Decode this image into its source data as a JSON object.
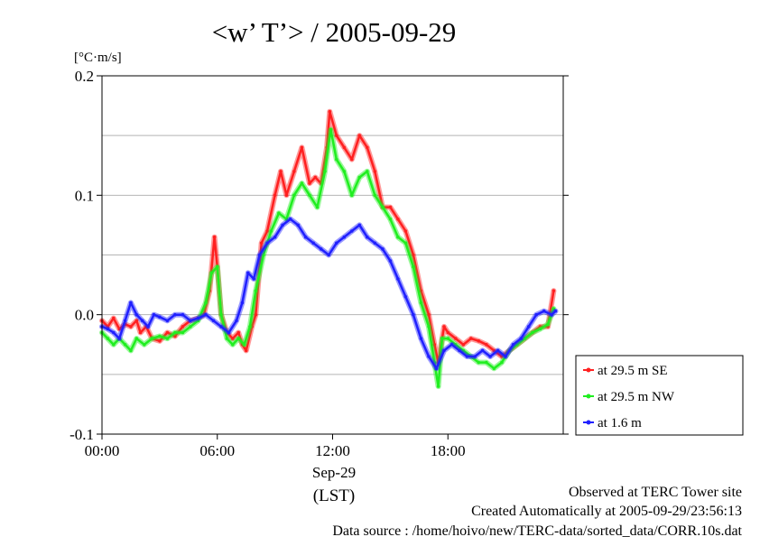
{
  "title": "<w’ T’> / 2005-09-29",
  "chart_data": {
    "type": "line",
    "title": "<w’ T’> / 2005-09-29",
    "ylabel": "[°C·m/s]",
    "xlabel": "(LST)",
    "date_label": "Sep-29",
    "x_unit": "hour of day (LST)",
    "xlim": [
      0,
      24
    ],
    "ylim": [
      -0.1,
      0.2
    ],
    "x_ticks": [
      0,
      6,
      12,
      18
    ],
    "x_tick_labels": [
      "00:00",
      "06:00",
      "12:00",
      "18:00"
    ],
    "y_ticks": [
      -0.1,
      0.0,
      0.1,
      0.2
    ],
    "y_tick_labels": [
      "-0.1",
      "0.0",
      "0.1",
      "0.2"
    ],
    "grid_y": [
      -0.05,
      0.0,
      0.05,
      0.1,
      0.15
    ],
    "grid": true,
    "legend_position": "right-bottom",
    "series": [
      {
        "name": "at 29.5 m SE",
        "color": "#ff2020",
        "points": [
          [
            0,
            -0.005
          ],
          [
            0.3,
            -0.01
          ],
          [
            0.6,
            -0.003
          ],
          [
            0.9,
            -0.012
          ],
          [
            1.2,
            -0.008
          ],
          [
            1.5,
            -0.01
          ],
          [
            1.8,
            -0.005
          ],
          [
            2.0,
            -0.015
          ],
          [
            2.3,
            -0.01
          ],
          [
            2.6,
            -0.02
          ],
          [
            3.0,
            -0.022
          ],
          [
            3.4,
            -0.015
          ],
          [
            3.8,
            -0.018
          ],
          [
            4.2,
            -0.01
          ],
          [
            4.6,
            -0.005
          ],
          [
            5.0,
            -0.003
          ],
          [
            5.3,
            0.0
          ],
          [
            5.6,
            0.02
          ],
          [
            5.85,
            0.065
          ],
          [
            6.0,
            0.04
          ],
          [
            6.2,
            0.0
          ],
          [
            6.5,
            -0.015
          ],
          [
            6.8,
            -0.02
          ],
          [
            7.1,
            -0.015
          ],
          [
            7.3,
            -0.025
          ],
          [
            7.5,
            -0.03
          ],
          [
            7.8,
            -0.01
          ],
          [
            8.0,
            0.0
          ],
          [
            8.3,
            0.06
          ],
          [
            8.6,
            0.07
          ],
          [
            9.0,
            0.1
          ],
          [
            9.3,
            0.12
          ],
          [
            9.6,
            0.1
          ],
          [
            10.0,
            0.12
          ],
          [
            10.4,
            0.14
          ],
          [
            10.8,
            0.11
          ],
          [
            11.1,
            0.115
          ],
          [
            11.4,
            0.11
          ],
          [
            11.7,
            0.14
          ],
          [
            11.85,
            0.17
          ],
          [
            12.2,
            0.15
          ],
          [
            12.6,
            0.14
          ],
          [
            13.0,
            0.13
          ],
          [
            13.4,
            0.15
          ],
          [
            13.8,
            0.14
          ],
          [
            14.2,
            0.12
          ],
          [
            14.6,
            0.09
          ],
          [
            15.0,
            0.09
          ],
          [
            15.4,
            0.08
          ],
          [
            15.8,
            0.07
          ],
          [
            16.2,
            0.05
          ],
          [
            16.6,
            0.02
          ],
          [
            17.0,
            0.0
          ],
          [
            17.3,
            -0.025
          ],
          [
            17.5,
            -0.04
          ],
          [
            17.8,
            -0.01
          ],
          [
            18.0,
            -0.015
          ],
          [
            18.4,
            -0.02
          ],
          [
            18.8,
            -0.025
          ],
          [
            19.2,
            -0.02
          ],
          [
            19.6,
            -0.022
          ],
          [
            20.0,
            -0.025
          ],
          [
            20.4,
            -0.03
          ],
          [
            20.8,
            -0.035
          ],
          [
            21.2,
            -0.03
          ],
          [
            21.6,
            -0.025
          ],
          [
            22.0,
            -0.02
          ],
          [
            22.4,
            -0.015
          ],
          [
            22.8,
            -0.01
          ],
          [
            23.2,
            -0.01
          ],
          [
            23.5,
            0.02
          ]
        ]
      },
      {
        "name": "at 29.5 m NW",
        "color": "#20ee20",
        "points": [
          [
            0,
            -0.015
          ],
          [
            0.3,
            -0.02
          ],
          [
            0.6,
            -0.025
          ],
          [
            0.9,
            -0.02
          ],
          [
            1.2,
            -0.025
          ],
          [
            1.5,
            -0.03
          ],
          [
            1.8,
            -0.02
          ],
          [
            2.2,
            -0.025
          ],
          [
            2.6,
            -0.02
          ],
          [
            3.0,
            -0.018
          ],
          [
            3.4,
            -0.02
          ],
          [
            3.8,
            -0.015
          ],
          [
            4.2,
            -0.015
          ],
          [
            4.6,
            -0.01
          ],
          [
            5.0,
            -0.005
          ],
          [
            5.4,
            0.01
          ],
          [
            5.7,
            0.035
          ],
          [
            6.0,
            0.04
          ],
          [
            6.2,
            0.0
          ],
          [
            6.5,
            -0.02
          ],
          [
            6.8,
            -0.025
          ],
          [
            7.1,
            -0.02
          ],
          [
            7.4,
            -0.025
          ],
          [
            7.7,
            -0.01
          ],
          [
            8.0,
            0.02
          ],
          [
            8.4,
            0.05
          ],
          [
            8.8,
            0.07
          ],
          [
            9.2,
            0.085
          ],
          [
            9.6,
            0.08
          ],
          [
            10.0,
            0.1
          ],
          [
            10.4,
            0.11
          ],
          [
            10.8,
            0.1
          ],
          [
            11.2,
            0.09
          ],
          [
            11.6,
            0.12
          ],
          [
            11.9,
            0.155
          ],
          [
            12.2,
            0.13
          ],
          [
            12.6,
            0.12
          ],
          [
            13.0,
            0.1
          ],
          [
            13.4,
            0.115
          ],
          [
            13.8,
            0.12
          ],
          [
            14.2,
            0.1
          ],
          [
            14.6,
            0.09
          ],
          [
            15.0,
            0.08
          ],
          [
            15.4,
            0.065
          ],
          [
            15.8,
            0.06
          ],
          [
            16.2,
            0.04
          ],
          [
            16.6,
            0.01
          ],
          [
            17.0,
            -0.01
          ],
          [
            17.3,
            -0.04
          ],
          [
            17.5,
            -0.06
          ],
          [
            17.7,
            -0.02
          ],
          [
            18.0,
            -0.02
          ],
          [
            18.4,
            -0.025
          ],
          [
            18.8,
            -0.03
          ],
          [
            19.2,
            -0.035
          ],
          [
            19.6,
            -0.04
          ],
          [
            20.0,
            -0.04
          ],
          [
            20.4,
            -0.045
          ],
          [
            20.8,
            -0.04
          ],
          [
            21.2,
            -0.03
          ],
          [
            21.6,
            -0.025
          ],
          [
            22.0,
            -0.02
          ],
          [
            22.4,
            -0.015
          ],
          [
            22.8,
            -0.012
          ],
          [
            23.2,
            -0.008
          ],
          [
            23.5,
            0.005
          ]
        ]
      },
      {
        "name": "at 1.6 m",
        "color": "#2020ff",
        "points": [
          [
            0,
            -0.01
          ],
          [
            0.3,
            -0.012
          ],
          [
            0.6,
            -0.015
          ],
          [
            0.9,
            -0.02
          ],
          [
            1.2,
            -0.005
          ],
          [
            1.5,
            0.01
          ],
          [
            1.8,
            0.0
          ],
          [
            2.1,
            -0.005
          ],
          [
            2.4,
            -0.01
          ],
          [
            2.7,
            0.0
          ],
          [
            3.0,
            -0.002
          ],
          [
            3.4,
            -0.005
          ],
          [
            3.8,
            0.0
          ],
          [
            4.2,
            0.0
          ],
          [
            4.6,
            -0.005
          ],
          [
            5.0,
            -0.003
          ],
          [
            5.4,
            0.0
          ],
          [
            5.8,
            -0.005
          ],
          [
            6.2,
            -0.01
          ],
          [
            6.6,
            -0.015
          ],
          [
            7.0,
            -0.005
          ],
          [
            7.3,
            0.01
          ],
          [
            7.6,
            0.035
          ],
          [
            7.9,
            0.03
          ],
          [
            8.2,
            0.05
          ],
          [
            8.6,
            0.06
          ],
          [
            9.0,
            0.065
          ],
          [
            9.4,
            0.075
          ],
          [
            9.8,
            0.08
          ],
          [
            10.2,
            0.075
          ],
          [
            10.6,
            0.065
          ],
          [
            11.0,
            0.06
          ],
          [
            11.4,
            0.055
          ],
          [
            11.8,
            0.05
          ],
          [
            12.2,
            0.06
          ],
          [
            12.6,
            0.065
          ],
          [
            13.0,
            0.07
          ],
          [
            13.4,
            0.075
          ],
          [
            13.8,
            0.065
          ],
          [
            14.2,
            0.06
          ],
          [
            14.6,
            0.055
          ],
          [
            15.0,
            0.045
          ],
          [
            15.4,
            0.03
          ],
          [
            15.8,
            0.015
          ],
          [
            16.2,
            0.0
          ],
          [
            16.6,
            -0.02
          ],
          [
            17.0,
            -0.035
          ],
          [
            17.4,
            -0.045
          ],
          [
            17.8,
            -0.03
          ],
          [
            18.2,
            -0.025
          ],
          [
            18.6,
            -0.03
          ],
          [
            19.0,
            -0.035
          ],
          [
            19.4,
            -0.035
          ],
          [
            19.8,
            -0.03
          ],
          [
            20.2,
            -0.035
          ],
          [
            20.6,
            -0.03
          ],
          [
            21.0,
            -0.035
          ],
          [
            21.4,
            -0.025
          ],
          [
            21.8,
            -0.02
          ],
          [
            22.2,
            -0.01
          ],
          [
            22.6,
            0.0
          ],
          [
            23.0,
            0.003
          ],
          [
            23.4,
            0.0
          ],
          [
            23.6,
            0.003
          ]
        ]
      }
    ]
  },
  "footer": {
    "line1": "Observed at TERC Tower site",
    "line2": "Created Automatically at 2005-09-29/23:56:13",
    "line3": "Data source : /home/hoivo/new/TERC-data/sorted_data/CORR.10s.dat"
  }
}
